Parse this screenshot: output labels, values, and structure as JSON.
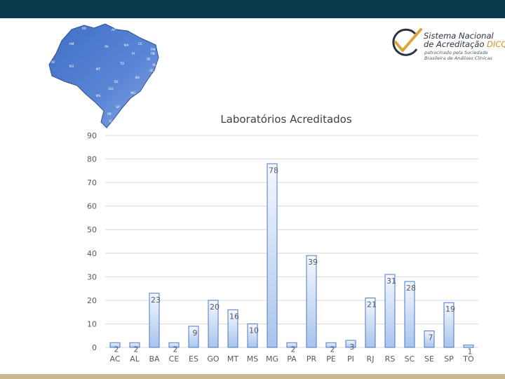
{
  "logo": {
    "line1": "Sistema Nacional",
    "line2_main": "de Acreditação",
    "line2_accent": "DICQ",
    "line3": "patrocinado pela Sociedade",
    "line4": "Brasileira de Análises Clínicas",
    "colors": {
      "text": "#2b3440",
      "accent": "#d58a25",
      "check": "#e0a23a"
    }
  },
  "map": {
    "icon": "brazil-map-icon",
    "state_labels": [
      "RR",
      "AP",
      "AM",
      "PA",
      "MA",
      "CE",
      "RN",
      "PB",
      "PI",
      "PE",
      "AC",
      "RO",
      "TO",
      "AL",
      "SE",
      "BA",
      "MT",
      "DF",
      "GO",
      "MG",
      "ES",
      "MS",
      "SP",
      "RJ",
      "PR",
      "SC",
      "RS"
    ]
  },
  "chart_data": {
    "type": "bar",
    "title": "Laboratórios Acreditados",
    "xlabel": "",
    "ylabel": "",
    "ylim": [
      0,
      90
    ],
    "yticks": [
      0,
      10,
      20,
      30,
      40,
      50,
      60,
      70,
      80,
      90
    ],
    "categories": [
      "AC",
      "AL",
      "BA",
      "CE",
      "ES",
      "GO",
      "MT",
      "MS",
      "MG",
      "PA",
      "PR",
      "PE",
      "PI",
      "RJ",
      "RS",
      "SC",
      "SE",
      "SP",
      "TO"
    ],
    "values": [
      2,
      2,
      23,
      2,
      9,
      20,
      16,
      10,
      78,
      2,
      39,
      2,
      3,
      21,
      31,
      28,
      7,
      19,
      1
    ],
    "grid": true,
    "legend": "none",
    "colors": {
      "bar_top": "#f4f8ff",
      "bar_bottom": "#a9c3ea",
      "bar_stroke": "#4a79c6",
      "grid": "#d9d9d9",
      "text": "#595959"
    }
  }
}
